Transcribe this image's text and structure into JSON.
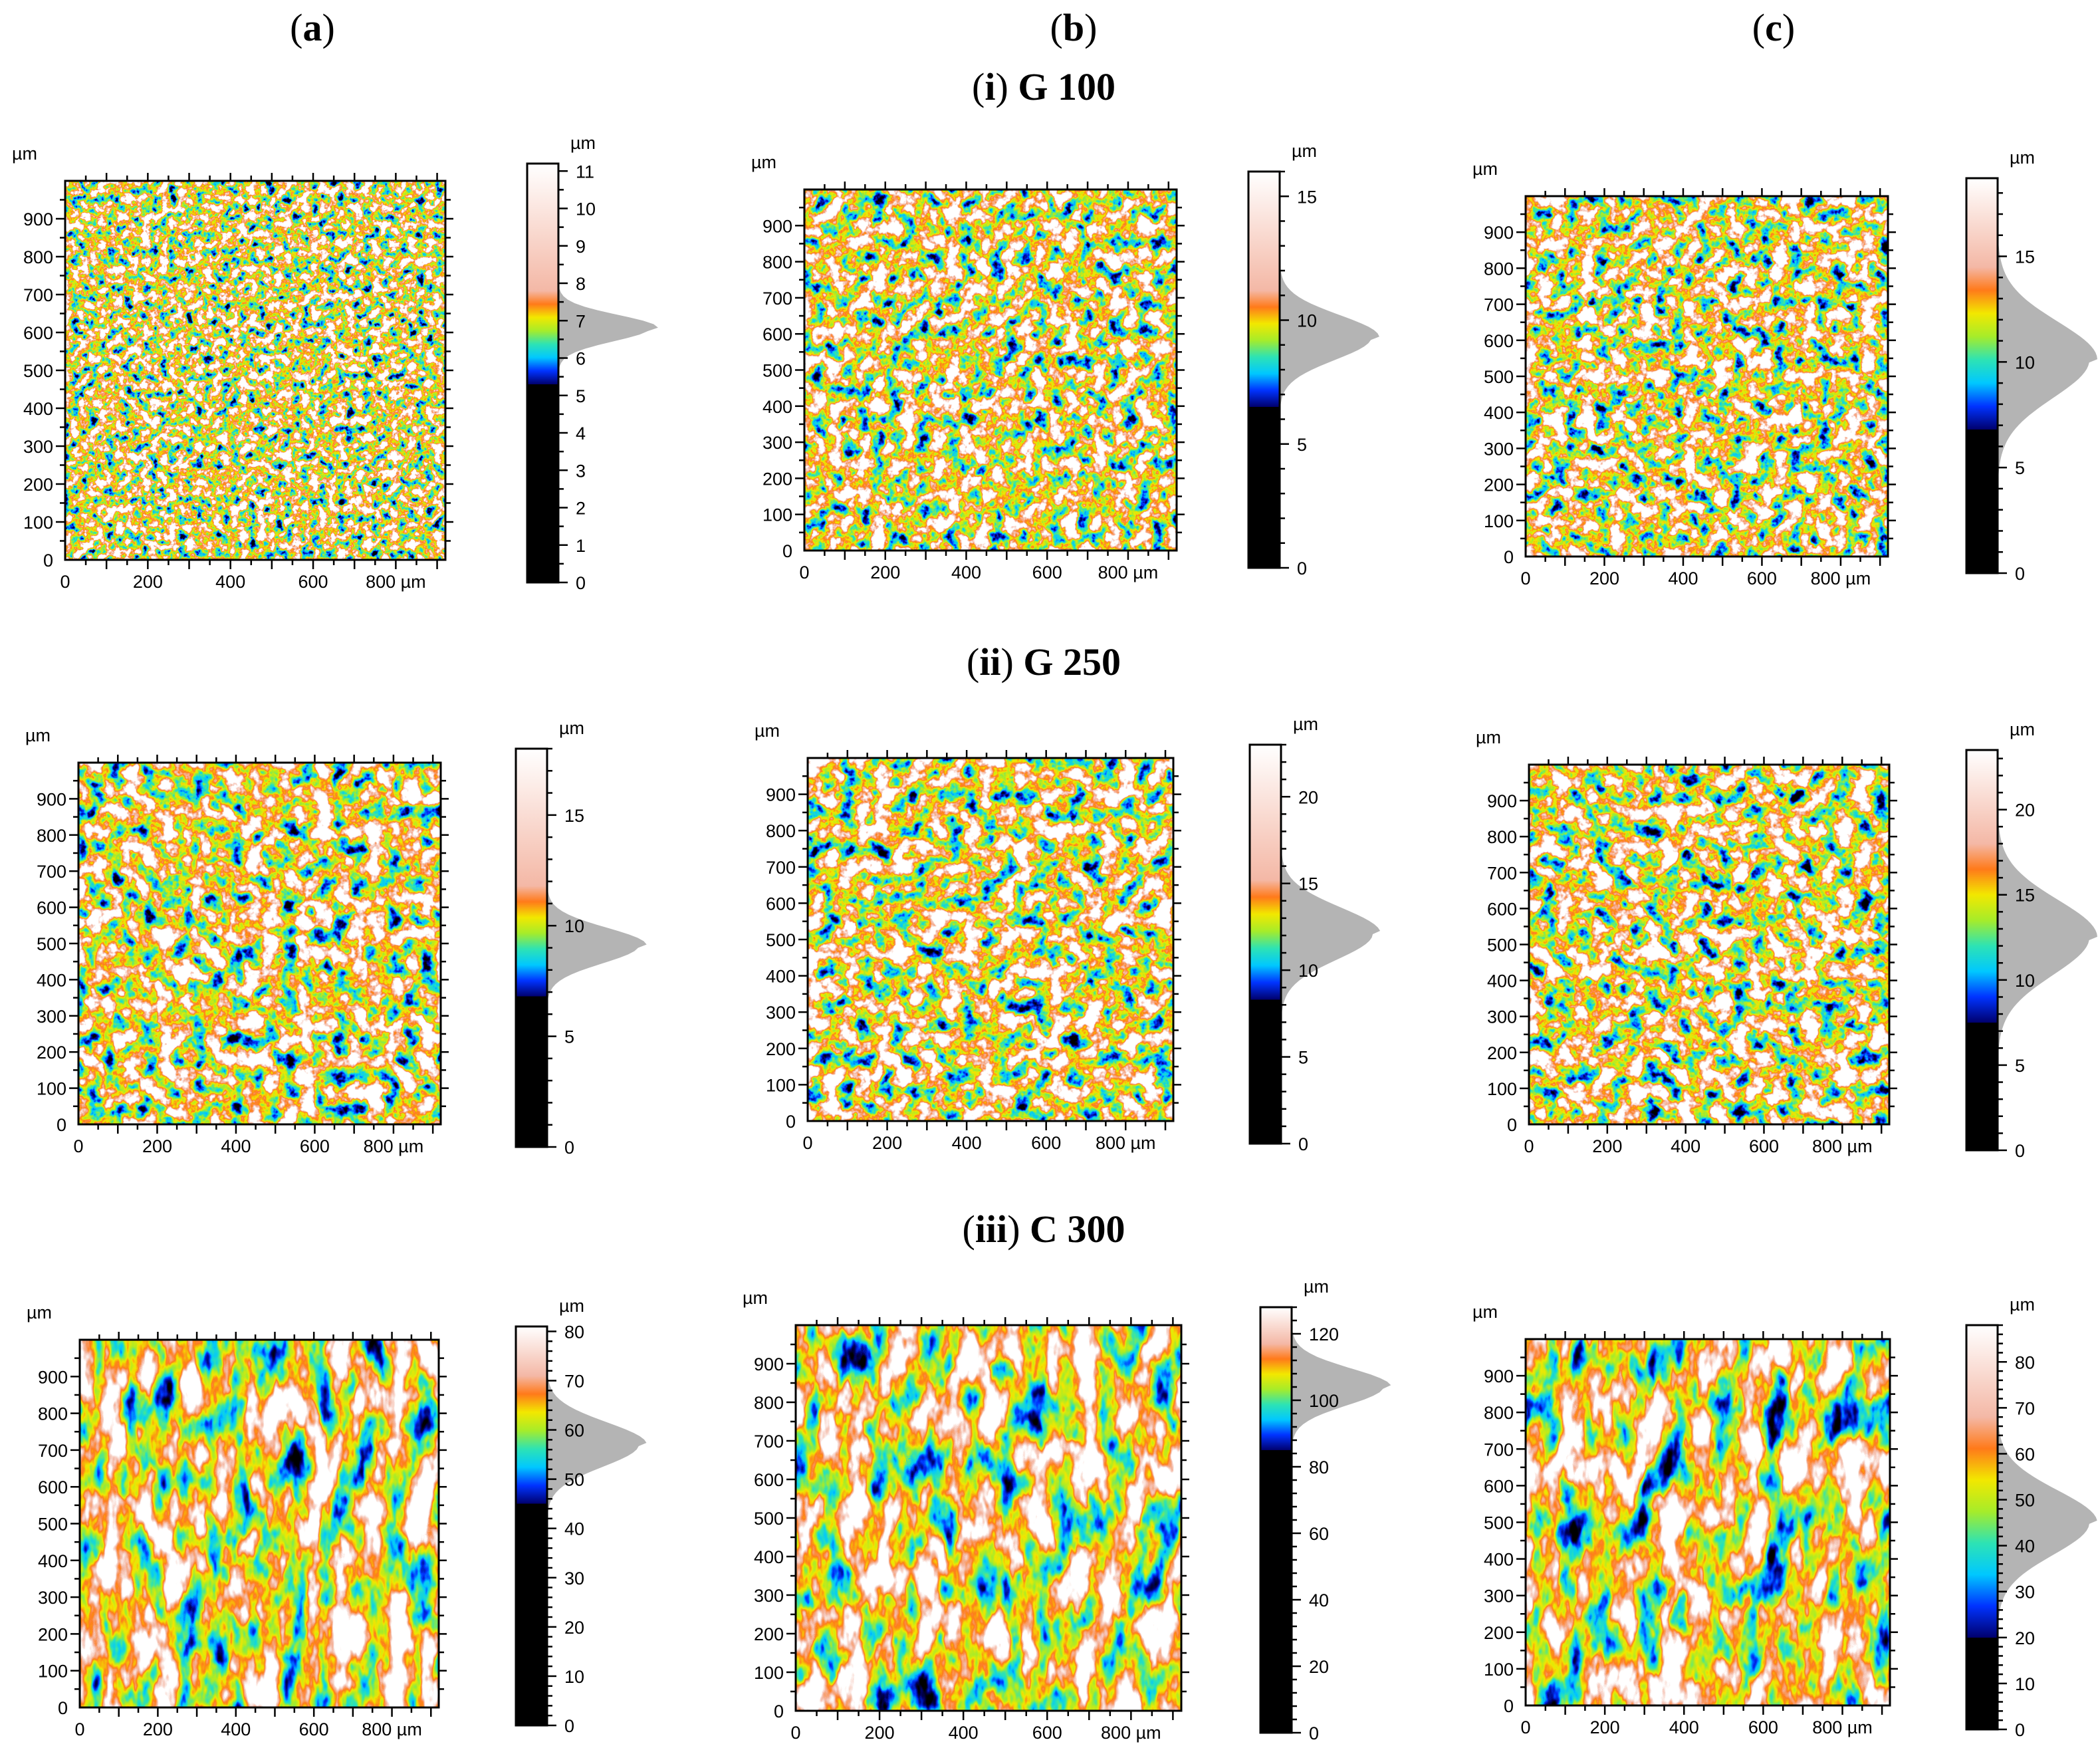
{
  "figure": {
    "column_headers": [
      {
        "open": "(",
        "letter": "a",
        "close": ")"
      },
      {
        "open": "(",
        "letter": "b",
        "close": ")"
      },
      {
        "open": "(",
        "letter": "c",
        "close": ")"
      }
    ],
    "row_headers": [
      {
        "open": "(",
        "roman": "i",
        "close": ")",
        "label": " G 100"
      },
      {
        "open": "(",
        "roman": "ii",
        "close": ")",
        "label": " G 250"
      },
      {
        "open": "(",
        "roman": "iii",
        "close": ")",
        "label": " C 300"
      }
    ],
    "unit": "µm",
    "colors": {
      "colormap": [
        "#000000",
        "#000000",
        "#00006e",
        "#0033ff",
        "#00c8ff",
        "#2de3b4",
        "#a6ec2a",
        "#f2e800",
        "#ff7a1a",
        "#f4b8a6",
        "#ffffff"
      ],
      "histogram": "#b4b4b4",
      "frame": "#000000",
      "background": "#ffffff"
    }
  },
  "chart_data": [
    {
      "type": "heatmap",
      "row": "i",
      "column": "a",
      "title": "(i) G 100 (a)",
      "xlabel": "µm",
      "ylabel": "µm",
      "x_ticks": [
        0,
        200,
        400,
        600,
        800
      ],
      "y_ticks": [
        0,
        100,
        200,
        300,
        400,
        500,
        600,
        700,
        800,
        900
      ],
      "xlim": [
        0,
        920
      ],
      "ylim": [
        0,
        1000
      ],
      "colorbar": {
        "range": [
          0,
          11.2
        ],
        "ticks": [
          0,
          1,
          2,
          3,
          4,
          5,
          6,
          7,
          8,
          9,
          10,
          11
        ],
        "black_below": 5.3,
        "white_above": 7.8,
        "histogram_peak": 6.8,
        "histogram_sigma": 0.35
      }
    },
    {
      "type": "heatmap",
      "row": "i",
      "column": "b",
      "title": "(i) G 100 (b)",
      "xlabel": "µm",
      "ylabel": "µm",
      "x_ticks": [
        0,
        200,
        400,
        600,
        800
      ],
      "y_ticks": [
        0,
        100,
        200,
        300,
        400,
        500,
        600,
        700,
        800,
        900
      ],
      "xlim": [
        0,
        920
      ],
      "ylim": [
        0,
        1000
      ],
      "colorbar": {
        "range": [
          0,
          16
        ],
        "ticks": [
          0,
          5,
          10,
          15
        ],
        "black_below": 6.5,
        "white_above": 11.2,
        "histogram_peak": 9.3,
        "histogram_sigma": 0.9
      }
    },
    {
      "type": "heatmap",
      "row": "i",
      "column": "c",
      "title": "(i) G 100 (c)",
      "xlabel": "µm",
      "ylabel": "µm",
      "x_ticks": [
        0,
        200,
        400,
        600,
        800
      ],
      "y_ticks": [
        0,
        100,
        200,
        300,
        400,
        500,
        600,
        700,
        800,
        900
      ],
      "xlim": [
        0,
        920
      ],
      "ylim": [
        0,
        1000
      ],
      "colorbar": {
        "range": [
          0,
          18.7
        ],
        "ticks": [
          0,
          5,
          10,
          15
        ],
        "black_below": 6.8,
        "white_above": 14.5,
        "histogram_peak": 10.1,
        "histogram_sigma": 1.8
      }
    },
    {
      "type": "heatmap",
      "row": "ii",
      "column": "a",
      "title": "(ii) G 250 (a)",
      "xlabel": "µm",
      "ylabel": "µm",
      "x_ticks": [
        0,
        200,
        400,
        600,
        800
      ],
      "y_ticks": [
        0,
        100,
        200,
        300,
        400,
        500,
        600,
        700,
        800,
        900
      ],
      "xlim": [
        0,
        920
      ],
      "ylim": [
        0,
        1000
      ],
      "colorbar": {
        "range": [
          0,
          18
        ],
        "ticks": [
          0,
          5,
          10,
          15
        ],
        "black_below": 6.8,
        "white_above": 11.8,
        "histogram_peak": 9.1,
        "histogram_sigma": 0.8
      }
    },
    {
      "type": "heatmap",
      "row": "ii",
      "column": "b",
      "title": "(ii) G 250 (b)",
      "xlabel": "µm",
      "ylabel": "µm",
      "x_ticks": [
        0,
        200,
        400,
        600,
        800
      ],
      "y_ticks": [
        0,
        100,
        200,
        300,
        400,
        500,
        600,
        700,
        800,
        900
      ],
      "xlim": [
        0,
        920
      ],
      "ylim": [
        0,
        1000
      ],
      "colorbar": {
        "range": [
          0,
          23
        ],
        "ticks": [
          0,
          5,
          10,
          15,
          20
        ],
        "black_below": 8.3,
        "white_above": 15.2,
        "histogram_peak": 12.1,
        "histogram_sigma": 1.5
      }
    },
    {
      "type": "heatmap",
      "row": "ii",
      "column": "c",
      "title": "(ii) G 250 (c)",
      "xlabel": "µm",
      "ylabel": "µm",
      "x_ticks": [
        0,
        200,
        400,
        600,
        800
      ],
      "y_ticks": [
        0,
        100,
        200,
        300,
        400,
        500,
        600,
        700,
        800,
        900
      ],
      "xlim": [
        0,
        920
      ],
      "ylim": [
        0,
        1000
      ],
      "colorbar": {
        "range": [
          0,
          23.5
        ],
        "ticks": [
          0,
          5,
          10,
          15,
          20
        ],
        "black_below": 7.5,
        "white_above": 18,
        "histogram_peak": 12.5,
        "histogram_sigma": 2.2
      }
    },
    {
      "type": "heatmap",
      "row": "iii",
      "column": "a",
      "title": "(iii) C 300 (a)",
      "xlabel": "µm",
      "ylabel": "µm",
      "x_ticks": [
        0,
        200,
        400,
        600,
        800
      ],
      "y_ticks": [
        0,
        100,
        200,
        300,
        400,
        500,
        600,
        700,
        800,
        900
      ],
      "xlim": [
        0,
        920
      ],
      "ylim": [
        0,
        1000
      ],
      "colorbar": {
        "range": [
          0,
          81
        ],
        "ticks": [
          0,
          10,
          20,
          30,
          40,
          50,
          60,
          70,
          80
        ],
        "black_below": 45,
        "white_above": 71,
        "histogram_peak": 57,
        "histogram_sigma": 4.5
      }
    },
    {
      "type": "heatmap",
      "row": "iii",
      "column": "b",
      "title": "(iii) C 300 (b)",
      "xlabel": "µm",
      "ylabel": "µm",
      "x_ticks": [
        0,
        200,
        400,
        600,
        800
      ],
      "y_ticks": [
        0,
        100,
        200,
        300,
        400,
        500,
        600,
        700,
        800,
        900
      ],
      "xlim": [
        0,
        920
      ],
      "ylim": [
        0,
        1000
      ],
      "colorbar": {
        "range": [
          0,
          128
        ],
        "ticks": [
          0,
          20,
          40,
          60,
          80,
          100,
          120
        ],
        "black_below": 85,
        "white_above": 117,
        "histogram_peak": 104,
        "histogram_sigma": 5.5
      }
    },
    {
      "type": "heatmap",
      "row": "iii",
      "column": "c",
      "title": "(iii) C 300 (c)",
      "xlabel": "µm",
      "ylabel": "µm",
      "x_ticks": [
        0,
        200,
        400,
        600,
        800
      ],
      "y_ticks": [
        0,
        100,
        200,
        300,
        400,
        500,
        600,
        700,
        800,
        900
      ],
      "xlim": [
        0,
        920
      ],
      "ylim": [
        0,
        1000
      ],
      "colorbar": {
        "range": [
          0,
          88
        ],
        "ticks": [
          0,
          10,
          20,
          30,
          40,
          50,
          60,
          70,
          80
        ],
        "black_below": 20,
        "white_above": 68,
        "histogram_peak": 45,
        "histogram_sigma": 7
      }
    }
  ]
}
